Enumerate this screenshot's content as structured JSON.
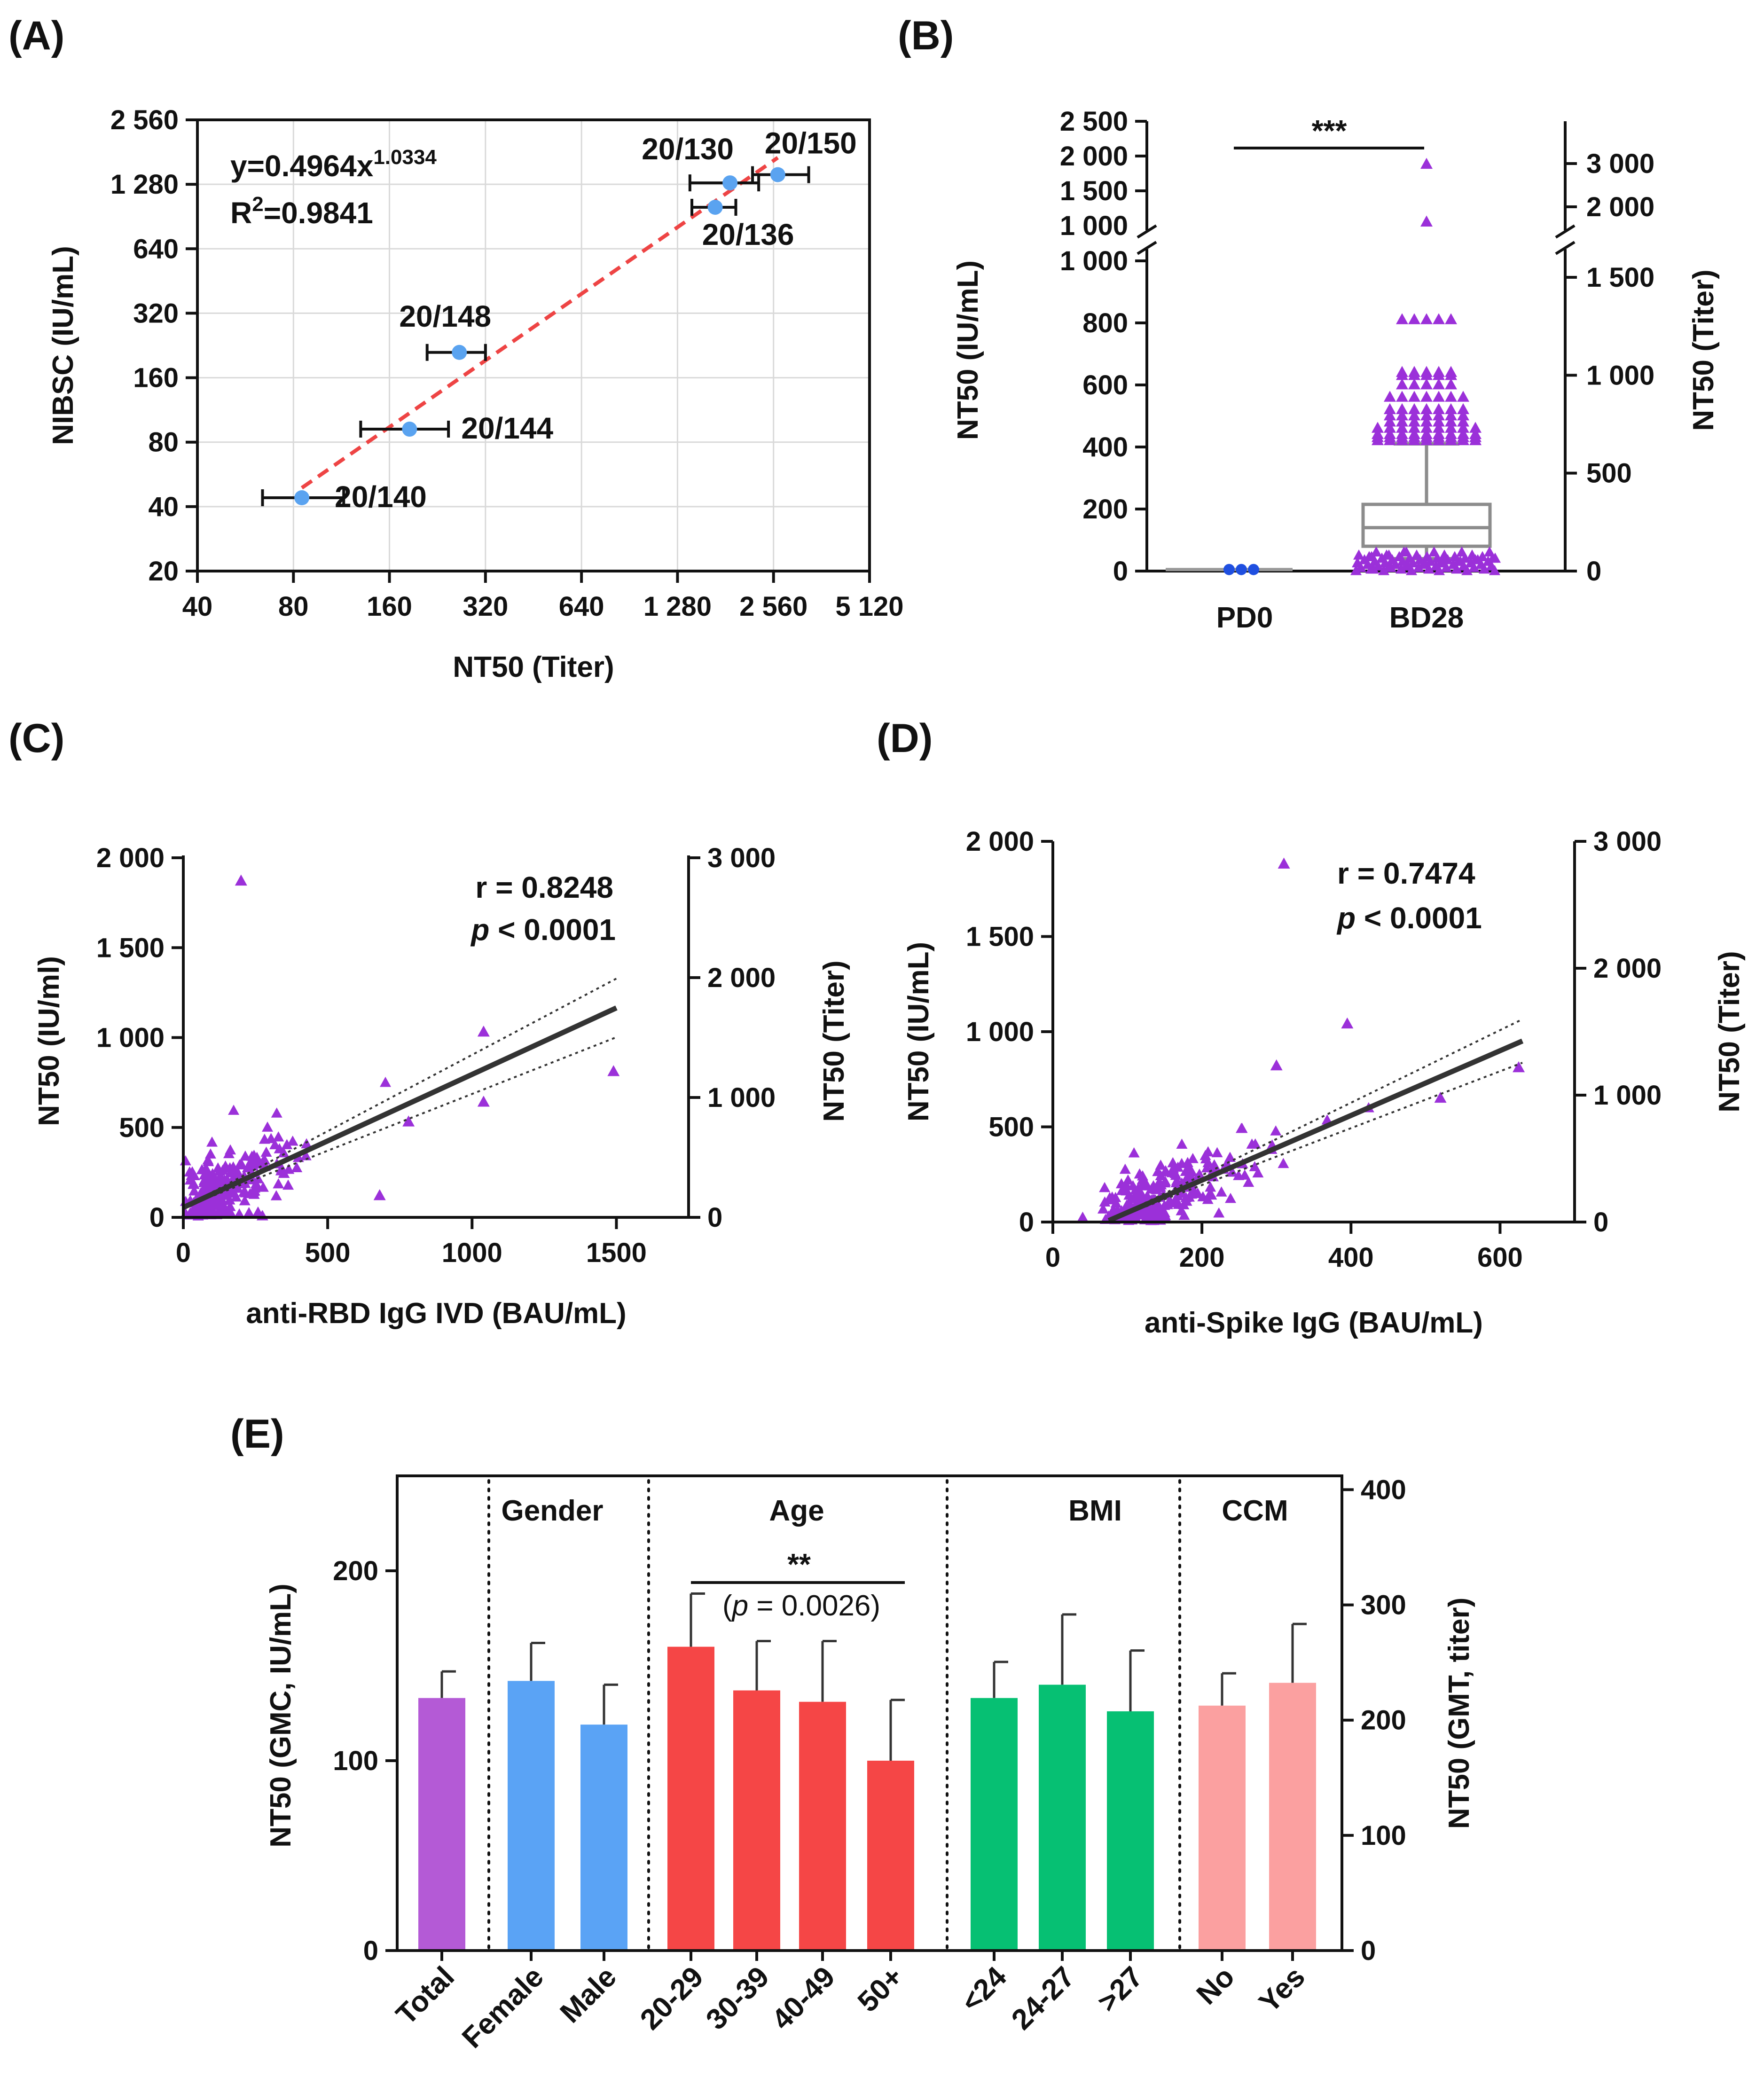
{
  "panels": {
    "A": {
      "label": "(A)"
    },
    "B": {
      "label": "(B)"
    },
    "C": {
      "label": "(C)"
    },
    "D": {
      "label": "(D)"
    },
    "E": {
      "label": "(E)"
    }
  },
  "chart_data": [
    {
      "id": "A",
      "type": "scatter",
      "scale": "log2",
      "xlabel": "NT50 (Titer)",
      "ylabel": "NIBSC (IU/mL)",
      "x_ticks": [
        "40",
        "80",
        "160",
        "320",
        "640",
        "1 280",
        "2 560",
        "5 120"
      ],
      "x_tick_values": [
        40,
        80,
        160,
        320,
        640,
        1280,
        2560,
        5120
      ],
      "y_ticks": [
        "20",
        "40",
        "80",
        "160",
        "320",
        "640",
        "1 280",
        "2 560"
      ],
      "y_tick_values": [
        20,
        40,
        80,
        160,
        320,
        640,
        1280,
        2560
      ],
      "xlim": [
        40,
        5120
      ],
      "ylim": [
        20,
        2560
      ],
      "grid": true,
      "equation": {
        "base": "y=0.4964x",
        "exponent": "1.0334"
      },
      "r2": {
        "base": "R",
        "sup": "2",
        "rest": "=0.9841"
      },
      "points": [
        {
          "name": "20/140",
          "x": 85,
          "y": 44,
          "xerr": [
            64,
            115
          ]
        },
        {
          "name": "20/144",
          "x": 185,
          "y": 92,
          "xerr": [
            130,
            245
          ]
        },
        {
          "name": "20/148",
          "x": 265,
          "y": 210,
          "xerr": [
            210,
            320
          ]
        },
        {
          "name": "20/136",
          "x": 1680,
          "y": 1000,
          "xerr": [
            1420,
            1950
          ]
        },
        {
          "name": "20/130",
          "x": 1870,
          "y": 1300,
          "xerr": [
            1400,
            2300
          ]
        },
        {
          "name": "20/150",
          "x": 2640,
          "y": 1420,
          "xerr": [
            2200,
            3300
          ]
        }
      ],
      "fit_line": {
        "x_from": 85,
        "x_to": 2640,
        "a": 0.4964,
        "b": 1.0334
      },
      "point_color": "#5aa3f0",
      "line_color": "#ee4444"
    },
    {
      "id": "B",
      "type": "box",
      "categories": [
        "PD0",
        "BD28"
      ],
      "ylabel_left": "NT50 (IU/mL)",
      "ylabel_right": "NT50 (Titer)",
      "significance": "***",
      "left_ticks_lower": [
        "0",
        "200",
        "400",
        "600",
        "800",
        "1 000"
      ],
      "left_tick_values_lower": [
        0,
        200,
        400,
        600,
        800,
        1000
      ],
      "left_ticks_upper": [
        "1 000",
        "1 500",
        "2 000",
        "2 500"
      ],
      "left_tick_values_upper": [
        1000,
        1500,
        2000,
        2500
      ],
      "right_ticks_lower": [
        "0",
        "500",
        "1 000",
        "1 500"
      ],
      "right_tick_values_lower": [
        0,
        500,
        1000,
        1500
      ],
      "right_ticks_upper": [
        "2 000",
        "3 000"
      ],
      "right_tick_values_upper": [
        2000,
        3000
      ],
      "ylim_lower": [
        0,
        1000
      ],
      "ylim_upper": [
        1000,
        2500
      ],
      "PD0": {
        "values": [
          5,
          5,
          5
        ],
        "median": 5
      },
      "BD28": {
        "min": 40,
        "q1": 80,
        "median": 140,
        "q3": 215,
        "max": 410
      },
      "BD28_outliers": [
        1880,
        1050,
        810,
        640,
        630,
        600,
        560,
        520,
        500,
        480,
        460,
        440,
        430,
        420
      ],
      "BD28_low_points": [
        0,
        5,
        10,
        15,
        20,
        25,
        30,
        35,
        40,
        45,
        50,
        60
      ],
      "point_color": "#9b30d9",
      "pd0_color": "#1f4fe0"
    },
    {
      "id": "C",
      "type": "scatter",
      "xlabel": "anti-RBD IgG IVD (BAU/mL)",
      "ylabel_left": "NT50 (IU/ml)",
      "ylabel_right": "NT50 (Titer)",
      "x_ticks": [
        "0",
        "500",
        "1000",
        "1500"
      ],
      "x_tick_values": [
        0,
        500,
        1000,
        1500
      ],
      "y_ticks": [
        "0",
        "500",
        "1 000",
        "1 500",
        "2 000"
      ],
      "y_tick_values": [
        0,
        500,
        1000,
        1500,
        2000
      ],
      "right_ticks": [
        "0",
        "1 000",
        "2 000",
        "3 000"
      ],
      "right_tick_values": [
        0,
        1000,
        2000,
        3000
      ],
      "xlim": [
        0,
        1750
      ],
      "ylim": [
        0,
        2000
      ],
      "r_text": "r = 0.8248",
      "p_label": "p",
      "p_text": " < 0.0001",
      "fit": {
        "slope": 0.74,
        "intercept": 55,
        "x_to": 1500,
        "ci_spread": 0.14
      },
      "highlight_points": [
        [
          200,
          1870
        ],
        [
          1040,
          1030
        ],
        [
          1490,
          810
        ],
        [
          1040,
          640
        ],
        [
          680,
          120
        ],
        [
          780,
          530
        ]
      ],
      "seed": 11,
      "n_points": 220,
      "point_color": "#9b30d9"
    },
    {
      "id": "D",
      "type": "scatter",
      "xlabel": "anti-Spike IgG (BAU/mL)",
      "ylabel_left": "NT50 (IU/mL)",
      "ylabel_right": "NT50 (Titer)",
      "x_ticks": [
        "0",
        "200",
        "400",
        "600"
      ],
      "x_tick_values": [
        0,
        200,
        400,
        600
      ],
      "y_ticks": [
        "0",
        "500",
        "1 000",
        "1 500",
        "2 000"
      ],
      "y_tick_values": [
        0,
        500,
        1000,
        1500,
        2000
      ],
      "right_ticks": [
        "0",
        "1 000",
        "2 000",
        "3 000"
      ],
      "right_tick_values": [
        0,
        1000,
        2000,
        3000
      ],
      "xlim": [
        0,
        700
      ],
      "ylim": [
        0,
        2000
      ],
      "r_text": "r = 0.7474",
      "p_label": "p",
      "p_text": " < 0.0001",
      "fit": {
        "slope": 1.7,
        "intercept": -120,
        "x_from": 75,
        "x_to": 630,
        "ci_spread": 0.12
      },
      "highlight_points": [
        [
          310,
          1880
        ],
        [
          395,
          1040
        ],
        [
          300,
          820
        ],
        [
          625,
          810
        ],
        [
          520,
          650
        ],
        [
          40,
          20
        ]
      ],
      "seed": 23,
      "n_points": 240,
      "point_color": "#9b30d9"
    },
    {
      "id": "E",
      "type": "bar",
      "ylabel_left": "NT50 (GMC, IU/mL)",
      "ylabel_right": "NT50 (GMT, titer)",
      "left_ticks": [
        "0",
        "100",
        "200"
      ],
      "left_tick_values": [
        0,
        100,
        200
      ],
      "right_ticks": [
        "0",
        "100",
        "200",
        "300",
        "400"
      ],
      "right_tick_values": [
        0,
        100,
        200,
        300,
        400
      ],
      "ylim": [
        0,
        250
      ],
      "groups": [
        "Gender",
        "Age",
        "BMI",
        "CCM"
      ],
      "significance": "**",
      "p_prefix": "(",
      "p_label": "p",
      "p_rest": " = 0.0026)",
      "categories": [
        "Total",
        "Female",
        "Male",
        "20-29",
        "30-39",
        "40-49",
        "50+",
        "<24",
        "24-27",
        ">27",
        "No",
        "Yes"
      ],
      "values": [
        133,
        142,
        119,
        160,
        137,
        131,
        100,
        133,
        140,
        126,
        129,
        141
      ],
      "errors": [
        147,
        162,
        140,
        188,
        163,
        163,
        132,
        152,
        177,
        158,
        146,
        172
      ],
      "colors": [
        "#b45ad6",
        "#5aa3f5",
        "#5aa3f5",
        "#f54646",
        "#f54646",
        "#f54646",
        "#f54646",
        "#06c073",
        "#06c073",
        "#06c073",
        "#fba0a0",
        "#fba0a0"
      ]
    }
  ]
}
